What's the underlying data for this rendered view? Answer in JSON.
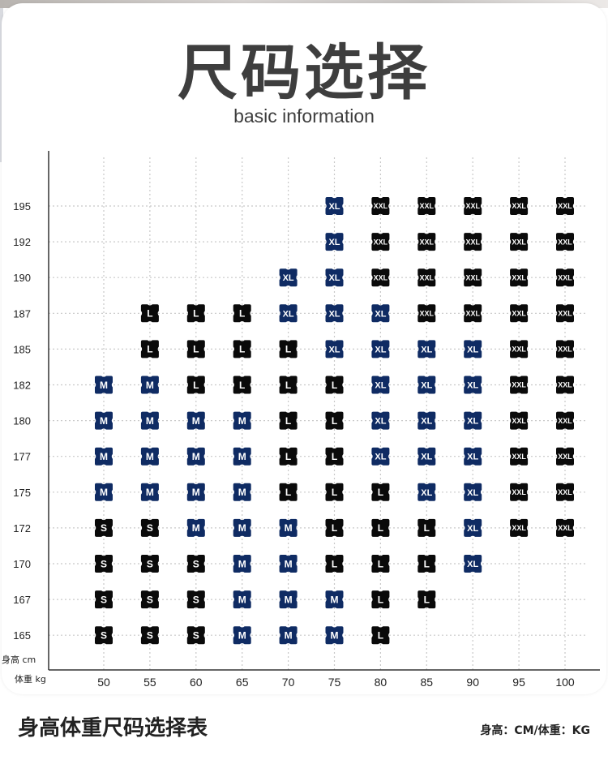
{
  "header": {
    "title": "尺码选择",
    "subtitle": "basic information"
  },
  "footer": {
    "chart_caption": "身高体重尺码选择表",
    "units_note": "身高：CM/体重：KG"
  },
  "colors": {
    "S": "#0a0a0a",
    "M": "#0f2b63",
    "L": "#0a0a0a",
    "XL": "#0f2b63",
    "XXL": "#0a0a0a",
    "grid": "#c8c8c8",
    "axis": "#333333"
  },
  "chart_data": {
    "type": "table",
    "ylabel": "身高 cm",
    "xlabel": "体重 kg",
    "x": [
      50,
      55,
      60,
      65,
      70,
      75,
      80,
      85,
      90,
      95,
      100
    ],
    "y": [
      195,
      192,
      190,
      187,
      185,
      182,
      180,
      177,
      175,
      172,
      170,
      167,
      165
    ],
    "grid": true,
    "cells": [
      {
        "height": 195,
        "sizes": [
          "",
          "",
          "",
          "",
          "",
          "XL",
          "XXL",
          "XXL",
          "XXL",
          "XXL",
          "XXL"
        ]
      },
      {
        "height": 192,
        "sizes": [
          "",
          "",
          "",
          "",
          "",
          "XL",
          "XXL",
          "XXL",
          "XXL",
          "XXL",
          "XXL"
        ]
      },
      {
        "height": 190,
        "sizes": [
          "",
          "",
          "",
          "",
          "XL",
          "XL",
          "XXL",
          "XXL",
          "XXL",
          "XXL",
          "XXL"
        ]
      },
      {
        "height": 187,
        "sizes": [
          "",
          "L",
          "L",
          "L",
          "XL",
          "XL",
          "XL",
          "XXL",
          "XXL",
          "XXL",
          "XXL"
        ]
      },
      {
        "height": 185,
        "sizes": [
          "",
          "L",
          "L",
          "L",
          "L",
          "XL",
          "XL",
          "XL",
          "XL",
          "XXL",
          "XXL"
        ]
      },
      {
        "height": 182,
        "sizes": [
          "M",
          "M",
          "L",
          "L",
          "L",
          "L",
          "XL",
          "XL",
          "XL",
          "XXL",
          "XXL"
        ]
      },
      {
        "height": 180,
        "sizes": [
          "M",
          "M",
          "M",
          "M",
          "L",
          "L",
          "XL",
          "XL",
          "XL",
          "XXL",
          "XXL"
        ]
      },
      {
        "height": 177,
        "sizes": [
          "M",
          "M",
          "M",
          "M",
          "L",
          "L",
          "XL",
          "XL",
          "XL",
          "XXL",
          "XXL"
        ]
      },
      {
        "height": 175,
        "sizes": [
          "M",
          "M",
          "M",
          "M",
          "L",
          "L",
          "L",
          "XL",
          "XL",
          "XXL",
          "XXL"
        ]
      },
      {
        "height": 172,
        "sizes": [
          "S",
          "S",
          "M",
          "M",
          "M",
          "L",
          "L",
          "L",
          "XL",
          "XXL",
          "XXL"
        ]
      },
      {
        "height": 170,
        "sizes": [
          "S",
          "S",
          "S",
          "M",
          "M",
          "L",
          "L",
          "L",
          "XL",
          "",
          ""
        ]
      },
      {
        "height": 167,
        "sizes": [
          "S",
          "S",
          "S",
          "M",
          "M",
          "M",
          "L",
          "L",
          "",
          "",
          ""
        ]
      },
      {
        "height": 165,
        "sizes": [
          "S",
          "S",
          "S",
          "M",
          "M",
          "M",
          "L",
          "",
          "",
          "",
          ""
        ]
      }
    ]
  }
}
